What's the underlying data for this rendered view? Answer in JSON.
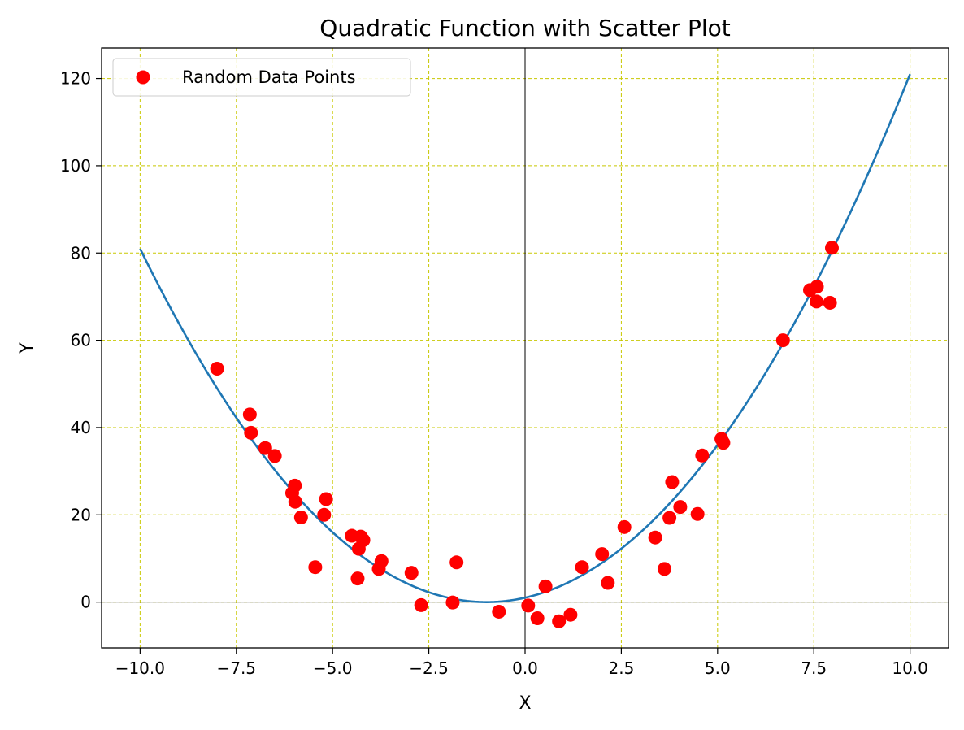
{
  "chart_data": {
    "type": "scatter",
    "title": "Quadratic Function with Scatter Plot",
    "xlabel": "X",
    "ylabel": "Y",
    "xlim": [
      -11,
      11
    ],
    "ylim": [
      -10.5,
      127
    ],
    "xticks": [
      -10,
      -7.5,
      -5,
      -2.5,
      0,
      2.5,
      5,
      7.5,
      10
    ],
    "xtick_labels": [
      "−10.0",
      "−7.5",
      "−5.0",
      "−2.5",
      "0.0",
      "2.5",
      "5.0",
      "7.5",
      "10.0"
    ],
    "yticks": [
      0,
      20,
      40,
      60,
      80,
      100,
      120
    ],
    "ytick_labels": [
      "0",
      "20",
      "40",
      "60",
      "80",
      "100",
      "120"
    ],
    "grid": true,
    "grid_color": "#c8c800",
    "legend_position": "top-left",
    "reference_lines": {
      "x": 0,
      "y": 0
    },
    "series": [
      {
        "kind": "line",
        "color": "#1f77b4",
        "function": "(x + 1)^2",
        "x_range": [
          -10,
          10
        ]
      },
      {
        "kind": "scatter",
        "name": "Random Data Points",
        "color": "#ff0000",
        "points": [
          [
            -8.0,
            53.5
          ],
          [
            -7.15,
            43.0
          ],
          [
            -7.12,
            38.8
          ],
          [
            -6.75,
            35.3
          ],
          [
            -6.5,
            33.5
          ],
          [
            -6.05,
            25.0
          ],
          [
            -5.98,
            26.7
          ],
          [
            -5.97,
            23.0
          ],
          [
            -5.82,
            19.4
          ],
          [
            -5.45,
            8.0
          ],
          [
            -5.22,
            20.0
          ],
          [
            -5.17,
            23.6
          ],
          [
            -4.5,
            15.2
          ],
          [
            -4.35,
            5.4
          ],
          [
            -4.32,
            12.2
          ],
          [
            -4.27,
            15.0
          ],
          [
            -4.2,
            14.2
          ],
          [
            -3.8,
            7.6
          ],
          [
            -3.73,
            9.4
          ],
          [
            -2.95,
            6.7
          ],
          [
            -2.7,
            -0.7
          ],
          [
            -1.88,
            -0.1
          ],
          [
            -1.78,
            9.1
          ],
          [
            -0.68,
            -2.2
          ],
          [
            0.08,
            -0.8
          ],
          [
            0.32,
            -3.7
          ],
          [
            0.53,
            3.6
          ],
          [
            0.88,
            -4.4
          ],
          [
            1.18,
            -2.9
          ],
          [
            1.48,
            8.0
          ],
          [
            2.0,
            11.0
          ],
          [
            2.15,
            4.4
          ],
          [
            2.58,
            17.2
          ],
          [
            3.38,
            14.8
          ],
          [
            3.62,
            7.6
          ],
          [
            3.75,
            19.3
          ],
          [
            3.82,
            27.5
          ],
          [
            4.03,
            21.8
          ],
          [
            4.48,
            20.2
          ],
          [
            4.6,
            33.6
          ],
          [
            5.1,
            37.4
          ],
          [
            5.15,
            36.5
          ],
          [
            6.7,
            60.0
          ],
          [
            7.4,
            71.5
          ],
          [
            7.58,
            72.3
          ],
          [
            7.57,
            68.9
          ],
          [
            7.92,
            68.6
          ],
          [
            7.97,
            81.2
          ]
        ]
      }
    ]
  }
}
